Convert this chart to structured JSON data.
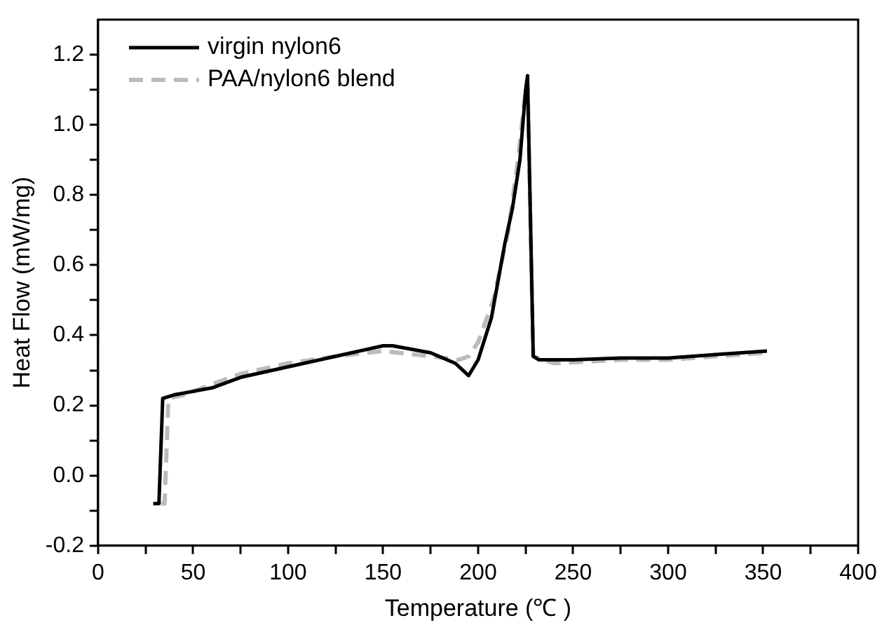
{
  "chart_data": {
    "type": "line",
    "xlabel": "Temperature (℃ )",
    "ylabel": "Heat Flow (mW/mg)",
    "xlim": [
      0,
      400
    ],
    "xticks": [
      0,
      {
        "value": 25,
        "label": null
      },
      50,
      {
        "value": 75,
        "label": null
      },
      100,
      {
        "value": 125,
        "label": null
      },
      150,
      {
        "value": 175,
        "label": null
      },
      200,
      {
        "value": 225,
        "label": null
      },
      250,
      {
        "value": 275,
        "label": null
      },
      300,
      {
        "value": 325,
        "label": null
      },
      350,
      {
        "value": 375,
        "label": null
      },
      400
    ],
    "ylim": [
      -0.2,
      1.3
    ],
    "yticks": [
      -0.2,
      {
        "value": -0.1,
        "label": null
      },
      {
        "value": 0,
        "label": "0.0"
      },
      {
        "value": 0.1,
        "label": null
      },
      0.2,
      {
        "value": 0.3,
        "label": null
      },
      0.4,
      {
        "value": 0.5,
        "label": null
      },
      0.6,
      {
        "value": 0.7,
        "label": null
      },
      0.8,
      {
        "value": 0.9,
        "label": null
      },
      {
        "value": 1,
        "label": "1.0"
      },
      {
        "value": 1.1,
        "label": null
      },
      1.2
    ],
    "grid": false,
    "legend": "top left",
    "marker": "none",
    "series": [
      {
        "name": "virgin nylon6",
        "color": "#000000",
        "line_style": "solid",
        "x": [
          29,
          32,
          34,
          40,
          60,
          75,
          100,
          125,
          150,
          155,
          165,
          175,
          188,
          195,
          200,
          207,
          214,
          218,
          222,
          225,
          226,
          229,
          232,
          250,
          275,
          300,
          325,
          352
        ],
        "values": [
          -0.08,
          -0.08,
          0.22,
          0.23,
          0.25,
          0.28,
          0.31,
          0.34,
          0.37,
          0.37,
          0.36,
          0.35,
          0.32,
          0.285,
          0.33,
          0.45,
          0.66,
          0.76,
          0.9,
          1.1,
          1.14,
          0.34,
          0.33,
          0.33,
          0.335,
          0.335,
          0.345,
          0.355
        ]
      },
      {
        "name": "PAA/nylon6 blend",
        "color": "#bbbbbb",
        "line_style": "dashed",
        "x": [
          33,
          35,
          37,
          45,
          60,
          75,
          100,
          125,
          150,
          175,
          190,
          195,
          200,
          208,
          216,
          221,
          225,
          226,
          229,
          240,
          275,
          300,
          325,
          352
        ],
        "values": [
          -0.08,
          -0.08,
          0.22,
          0.23,
          0.26,
          0.29,
          0.32,
          0.34,
          0.355,
          0.34,
          0.33,
          0.34,
          0.38,
          0.5,
          0.7,
          0.9,
          1.1,
          1.12,
          0.34,
          0.32,
          0.33,
          0.33,
          0.34,
          0.35
        ]
      }
    ]
  }
}
